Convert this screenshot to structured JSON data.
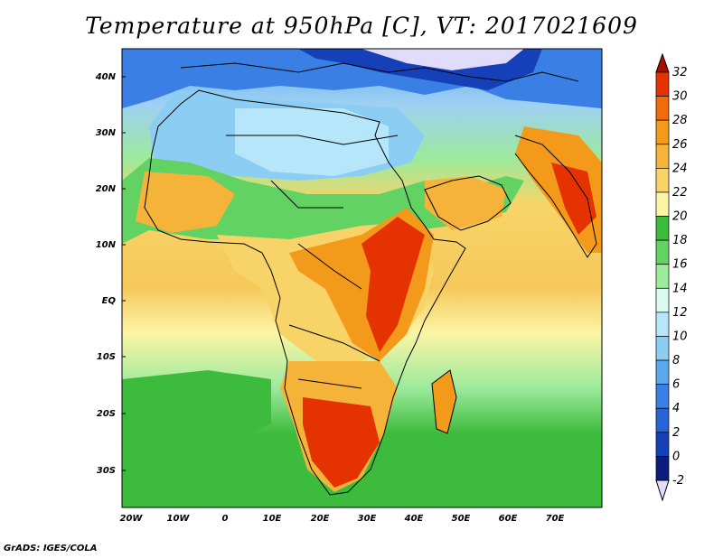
{
  "title": "Temperature at 950hPa [C], VT: 2017021609",
  "footer": "GrADS: IGES/COLA",
  "lat_labels": [
    "40N",
    "30N",
    "20N",
    "10N",
    "EQ",
    "10S",
    "20S",
    "30S"
  ],
  "lon_labels": [
    "20W",
    "10W",
    "0",
    "10E",
    "20E",
    "30E",
    "40E",
    "50E",
    "60E",
    "70E"
  ],
  "colorbar": {
    "labels": [
      "32",
      "30",
      "28",
      "26",
      "24",
      "22",
      "20",
      "18",
      "16",
      "14",
      "12",
      "10",
      "8",
      "6",
      "4",
      "2",
      "0",
      "-2"
    ],
    "colors": [
      "#a50f00",
      "#e43300",
      "#f06c0a",
      "#f39a1b",
      "#f6b33a",
      "#f8d468",
      "#fcf4a6",
      "#3dbb3d",
      "#62d262",
      "#9cea9c",
      "#d9fbef",
      "#b6e6f9",
      "#8ccdf4",
      "#5ca8ec",
      "#3a80e4",
      "#2563d6",
      "#1540b8",
      "#0c1c7a",
      "#e2dcfb"
    ]
  },
  "legend_label_colors": {
    "n32": "#a50f00",
    "lav": "#e2dcfb"
  }
}
